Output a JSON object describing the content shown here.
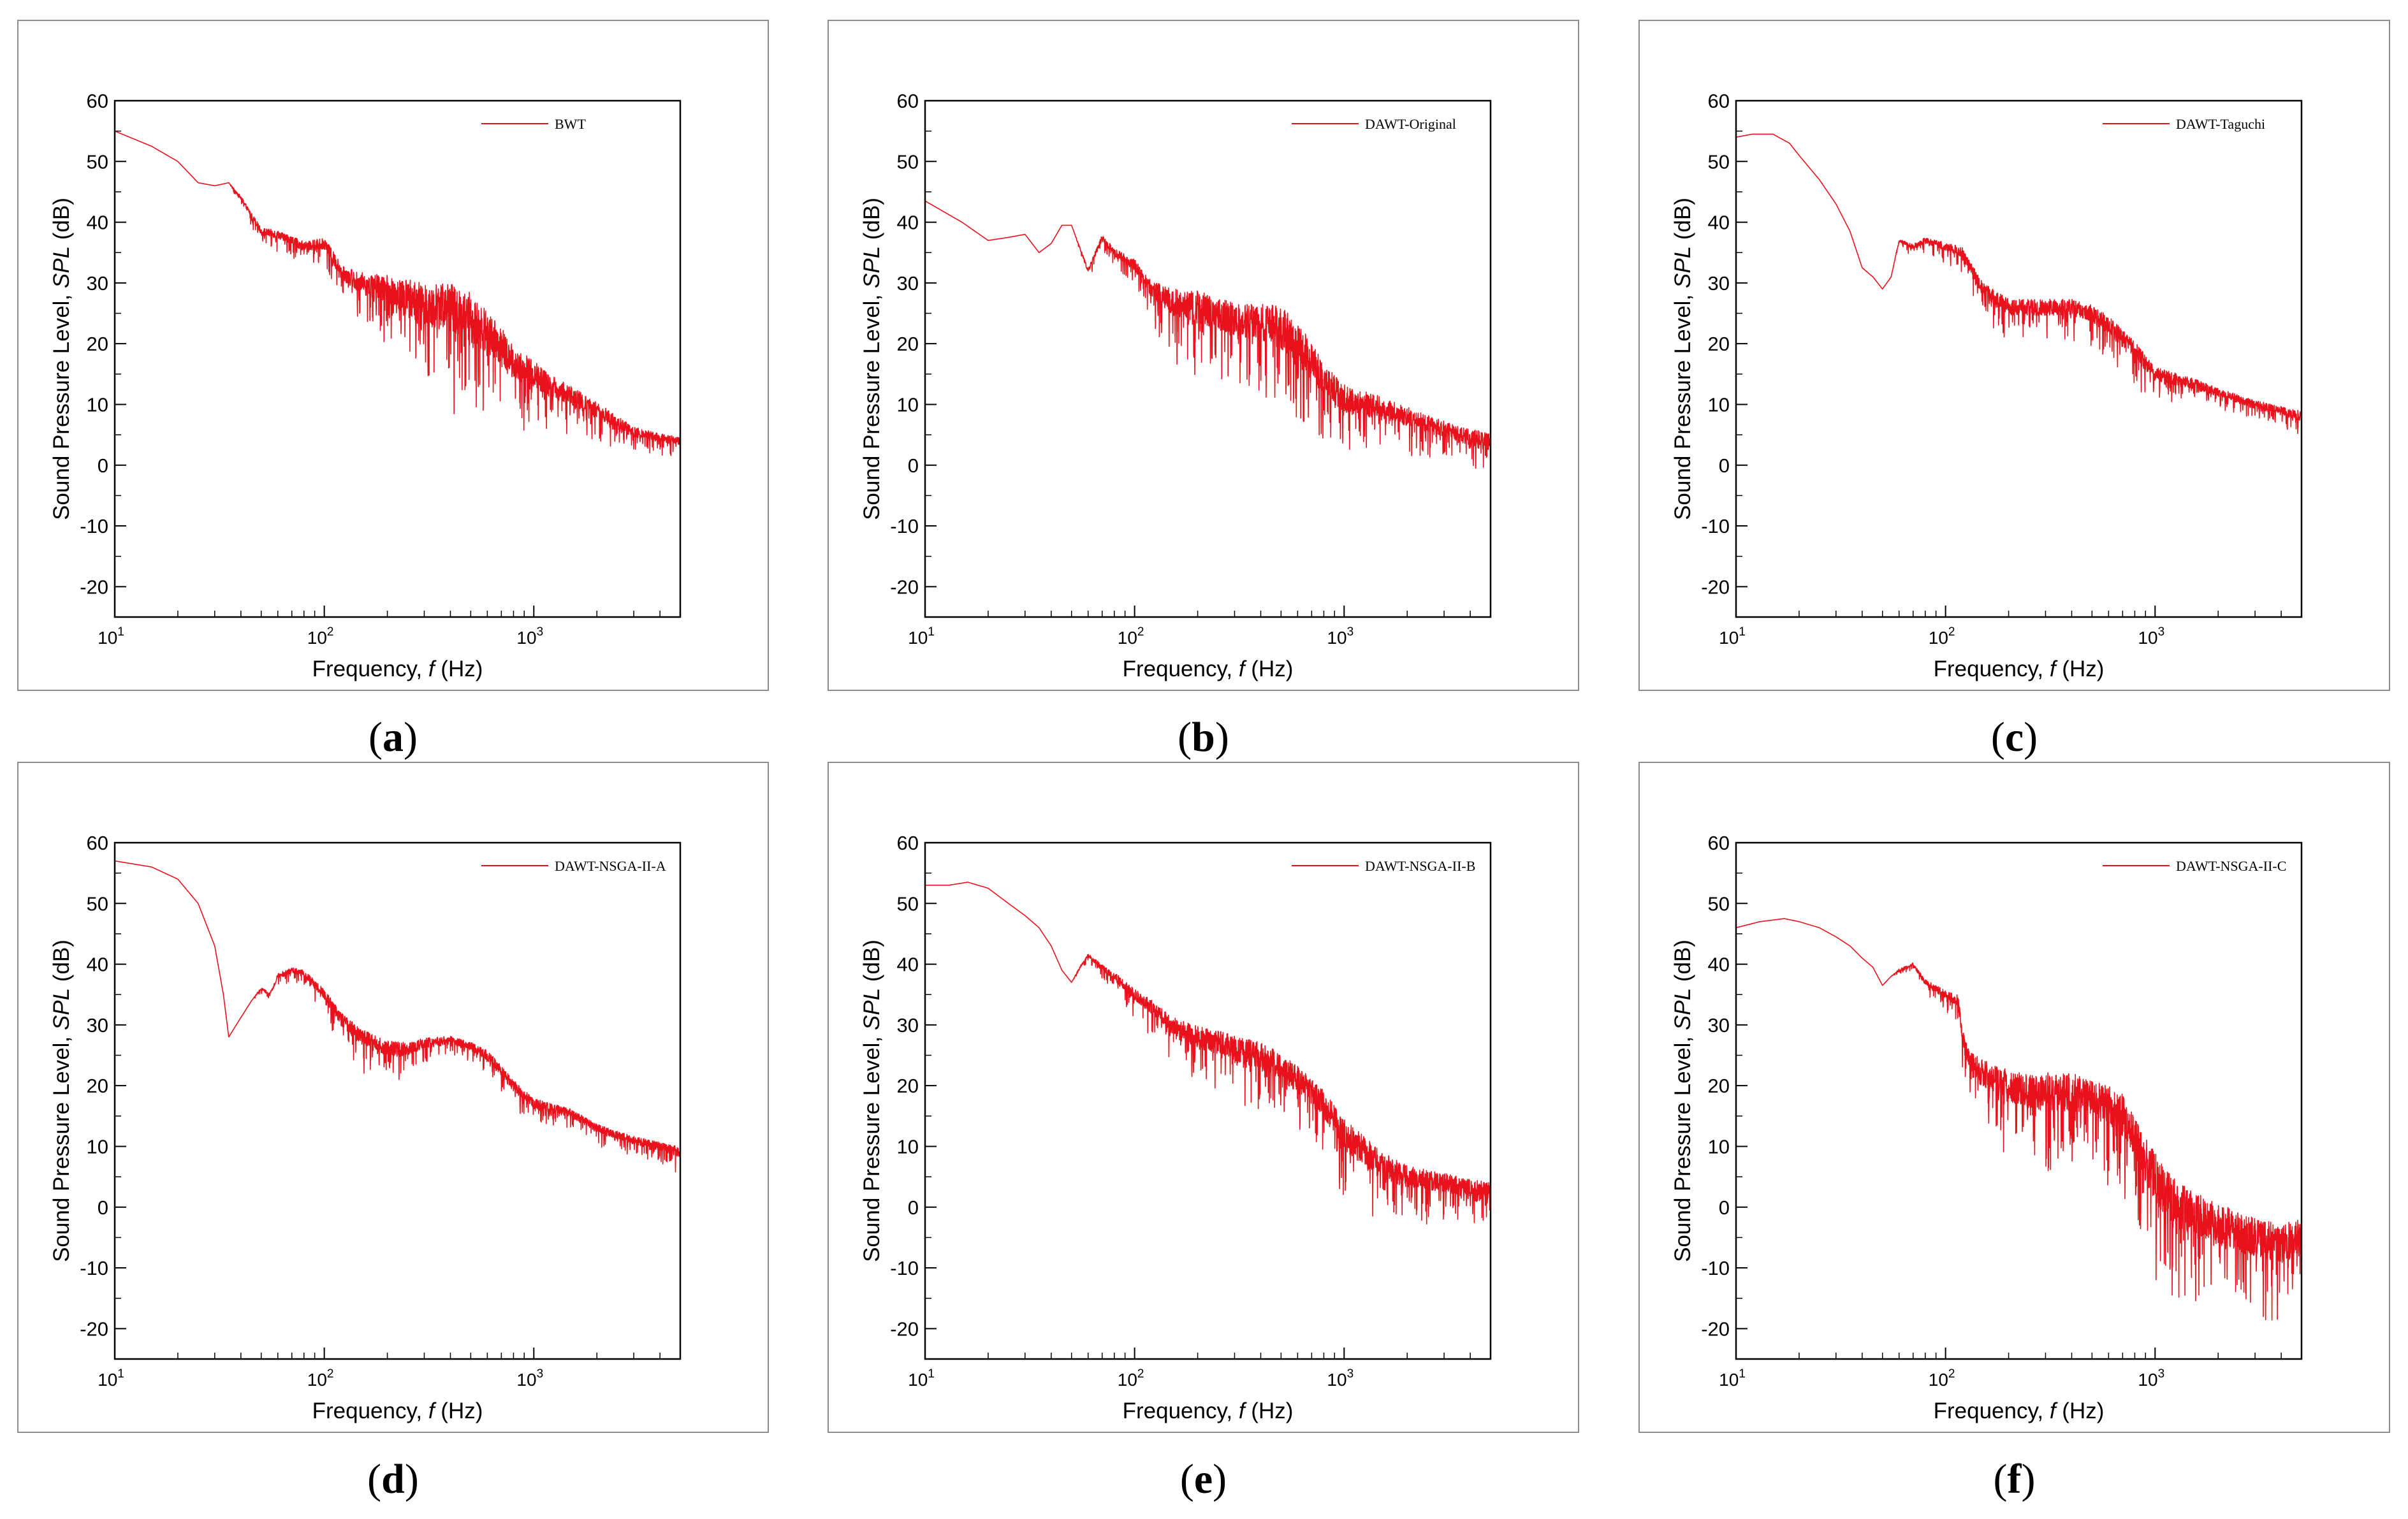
{
  "figure": {
    "panels_note": "Six log-frequency SPL spectra comparing wind turbine configurations"
  },
  "styles": {
    "line_color": "#e8111c",
    "axis_color": "#000000",
    "frame_color": "#8c8c8c"
  },
  "chart_data": [
    {
      "id": "a",
      "type": "line",
      "caption": "a",
      "series_name": "BWT",
      "xlabel": "Frequency, ",
      "xlabel_var": "f",
      "xlabel_unit": " (Hz)",
      "ylabel": "Sound Pressure Level, ",
      "ylabel_var": "SPL",
      "ylabel_unit": " (dB)",
      "xscale": "log",
      "xlim": [
        10,
        5000
      ],
      "ylim": [
        -25,
        60
      ],
      "yticks": [
        -20,
        -10,
        0,
        10,
        20,
        30,
        40,
        50,
        60
      ],
      "xticks": [
        {
          "base": "10",
          "exp": "1"
        },
        {
          "base": "10",
          "exp": "2"
        },
        {
          "base": "10",
          "exp": "3"
        }
      ],
      "legend_loc": "top-right",
      "x": [
        10,
        15,
        20,
        25,
        30,
        35,
        40,
        50,
        60,
        70,
        80,
        100,
        120,
        150,
        200,
        250,
        300,
        400,
        500,
        600,
        700,
        800,
        1000,
        1200,
        1500,
        2000,
        2500,
        3000,
        4000,
        5000
      ],
      "y": [
        55,
        52.5,
        50,
        46.5,
        46,
        46.5,
        44,
        38.5,
        38,
        37,
        36,
        36.5,
        32,
        30,
        29,
        27.5,
        26.5,
        26,
        24.5,
        22,
        19.5,
        17,
        15,
        13,
        11.5,
        9,
        7,
        5.5,
        4.5,
        4
      ],
      "noise": [
        0,
        0,
        0,
        0,
        0,
        0,
        0.8,
        1.2,
        1.5,
        1.5,
        1.8,
        2,
        3,
        4,
        5,
        7,
        8,
        9,
        9,
        8,
        7,
        6,
        5,
        4,
        3.5,
        3,
        2.5,
        2,
        1.5,
        1.5
      ]
    },
    {
      "id": "b",
      "type": "line",
      "caption": "b",
      "series_name": "DAWT-Original",
      "xlabel": "Frequency, ",
      "xlabel_var": "f",
      "xlabel_unit": " (Hz)",
      "ylabel": "Sound Pressure Level, ",
      "ylabel_var": "SPL",
      "ylabel_unit": " (dB)",
      "xscale": "log",
      "xlim": [
        10,
        5000
      ],
      "ylim": [
        -25,
        60
      ],
      "yticks": [
        -20,
        -10,
        0,
        10,
        20,
        30,
        40,
        50,
        60
      ],
      "xticks": [
        {
          "base": "10",
          "exp": "1"
        },
        {
          "base": "10",
          "exp": "2"
        },
        {
          "base": "10",
          "exp": "3"
        }
      ],
      "legend_loc": "top-right",
      "x": [
        10,
        15,
        20,
        25,
        30,
        35,
        40,
        45,
        50,
        60,
        70,
        80,
        100,
        120,
        150,
        200,
        250,
        300,
        400,
        500,
        600,
        700,
        800,
        1000,
        1500,
        2000,
        3000,
        4000,
        5000
      ],
      "y": [
        43.5,
        40,
        37,
        37.5,
        38,
        35,
        36.5,
        39.5,
        39.5,
        32,
        37.5,
        35,
        33,
        29,
        27,
        26,
        25,
        24,
        23.5,
        22.5,
        20,
        17,
        14,
        11,
        9.5,
        8,
        6,
        4.5,
        4
      ],
      "noise": [
        0,
        0,
        0,
        0,
        0,
        0,
        0,
        0,
        0,
        0.8,
        1,
        1.5,
        2,
        3,
        5,
        6,
        6,
        6,
        7,
        8,
        8,
        7,
        6,
        5,
        4,
        3.5,
        3,
        3,
        4
      ]
    },
    {
      "id": "c",
      "type": "line",
      "caption": "c",
      "series_name": "DAWT-Taguchi",
      "xlabel": "Frequency, ",
      "xlabel_var": "f",
      "xlabel_unit": " (Hz)",
      "ylabel": "Sound Pressure Level, ",
      "ylabel_var": "SPL",
      "ylabel_unit": " (dB)",
      "xscale": "log",
      "xlim": [
        10,
        5000
      ],
      "ylim": [
        -25,
        60
      ],
      "yticks": [
        -20,
        -10,
        0,
        10,
        20,
        30,
        40,
        50,
        60
      ],
      "xticks": [
        {
          "base": "10",
          "exp": "1"
        },
        {
          "base": "10",
          "exp": "2"
        },
        {
          "base": "10",
          "exp": "3"
        }
      ],
      "legend_loc": "top-right",
      "x": [
        10,
        12,
        15,
        18,
        20,
        25,
        30,
        35,
        40,
        45,
        50,
        55,
        60,
        70,
        80,
        100,
        120,
        150,
        200,
        250,
        300,
        400,
        500,
        600,
        800,
        1000,
        1500,
        2000,
        3000,
        4000,
        5000
      ],
      "y": [
        54,
        54.5,
        54.5,
        53,
        51,
        47,
        43,
        38.5,
        32.5,
        31,
        29,
        31,
        37,
        36,
        37,
        36,
        35,
        29,
        26,
        26,
        26,
        26,
        25,
        23,
        19,
        15,
        13.5,
        12,
        10,
        9,
        8
      ],
      "noise": [
        0,
        0,
        0,
        0,
        0,
        0,
        0,
        0,
        0,
        0,
        0,
        0,
        0.5,
        1,
        1.2,
        1.5,
        2,
        2.5,
        3,
        3,
        3,
        3,
        3,
        3.5,
        3,
        2.5,
        2,
        1.5,
        1.5,
        1.5,
        2
      ]
    },
    {
      "id": "d",
      "type": "line",
      "caption": "d",
      "series_name": "DAWT-NSGA-II-A",
      "xlabel": "Frequency, ",
      "xlabel_var": "f",
      "xlabel_unit": " (Hz)",
      "ylabel": "Sound Pressure Level, ",
      "ylabel_var": "SPL",
      "ylabel_unit": " (dB)",
      "xscale": "log",
      "xlim": [
        10,
        5000
      ],
      "ylim": [
        -25,
        60
      ],
      "yticks": [
        -20,
        -10,
        0,
        10,
        20,
        30,
        40,
        50,
        60
      ],
      "xticks": [
        {
          "base": "10",
          "exp": "1"
        },
        {
          "base": "10",
          "exp": "2"
        },
        {
          "base": "10",
          "exp": "3"
        }
      ],
      "legend_loc": "top-right",
      "x": [
        10,
        15,
        20,
        25,
        30,
        33,
        35,
        38,
        45,
        50,
        55,
        60,
        70,
        80,
        100,
        120,
        150,
        200,
        250,
        300,
        400,
        500,
        600,
        800,
        1000,
        1500,
        2000,
        3000,
        4000,
        5000
      ],
      "y": [
        57,
        56,
        54,
        50,
        43,
        35,
        28,
        30,
        34,
        36,
        35,
        38,
        39,
        38.5,
        35,
        31,
        28,
        26,
        26,
        27,
        27.5,
        26.5,
        25,
        20,
        17,
        15.5,
        13,
        11,
        10,
        9
      ],
      "noise": [
        0,
        0,
        0,
        0,
        0,
        0,
        0,
        0,
        0,
        0.5,
        0.5,
        1,
        1,
        1.2,
        2,
        2.5,
        3,
        3,
        2.5,
        2,
        1.5,
        1.5,
        2,
        2,
        2,
        1.5,
        1.5,
        1.5,
        1.5,
        2
      ]
    },
    {
      "id": "e",
      "type": "line",
      "caption": "e",
      "series_name": "DAWT-NSGA-II-B",
      "xlabel": "Frequency, ",
      "xlabel_var": "f",
      "xlabel_unit": " (Hz)",
      "ylabel": "Sound Pressure Level, ",
      "ylabel_var": "SPL",
      "ylabel_unit": " (dB)",
      "xscale": "log",
      "xlim": [
        10,
        5000
      ],
      "ylim": [
        -25,
        60
      ],
      "yticks": [
        -20,
        -10,
        0,
        10,
        20,
        30,
        40,
        50,
        60
      ],
      "xticks": [
        {
          "base": "10",
          "exp": "1"
        },
        {
          "base": "10",
          "exp": "2"
        },
        {
          "base": "10",
          "exp": "3"
        }
      ],
      "legend_loc": "top-right",
      "x": [
        10,
        13,
        16,
        20,
        25,
        30,
        35,
        40,
        45,
        50,
        55,
        60,
        70,
        80,
        100,
        120,
        150,
        200,
        250,
        300,
        400,
        500,
        600,
        800,
        1000,
        1500,
        2000,
        3000,
        4000,
        5000
      ],
      "y": [
        53,
        53,
        53.5,
        52.5,
        50,
        48,
        46,
        43,
        39,
        37,
        39.5,
        41.5,
        39.5,
        38,
        35,
        33,
        30,
        28,
        27,
        26,
        25,
        23,
        21,
        17,
        12,
        7,
        5,
        4,
        3,
        2
      ],
      "noise": [
        0,
        0,
        0,
        0,
        0,
        0,
        0,
        0,
        0,
        0,
        0.5,
        0.5,
        1,
        1.5,
        2,
        2.5,
        3,
        4,
        4.5,
        5,
        5,
        5,
        5,
        5,
        6,
        5,
        4,
        3.5,
        3.5,
        5
      ]
    },
    {
      "id": "f",
      "type": "line",
      "caption": "f",
      "series_name": "DAWT-NSGA-II-C",
      "xlabel": "Frequency, ",
      "xlabel_var": "f",
      "xlabel_unit": " (Hz)",
      "ylabel": "Sound Pressure Level, ",
      "ylabel_var": "SPL",
      "ylabel_unit": " (dB)",
      "xscale": "log",
      "xlim": [
        10,
        5000
      ],
      "ylim": [
        -25,
        60
      ],
      "yticks": [
        -20,
        -10,
        0,
        10,
        20,
        30,
        40,
        50,
        60
      ],
      "xticks": [
        {
          "base": "10",
          "exp": "1"
        },
        {
          "base": "10",
          "exp": "2"
        },
        {
          "base": "10",
          "exp": "3"
        }
      ],
      "legend_loc": "top-right",
      "x": [
        10,
        13,
        17,
        20,
        25,
        30,
        35,
        40,
        45,
        50,
        55,
        60,
        70,
        80,
        100,
        115,
        120,
        130,
        150,
        200,
        250,
        300,
        400,
        500,
        600,
        700,
        800,
        1000,
        1200,
        1500,
        2000,
        3000,
        4000,
        5000
      ],
      "y": [
        46,
        47,
        47.5,
        47,
        46,
        44.5,
        43,
        41,
        39.5,
        36.5,
        38,
        39,
        40,
        37,
        35,
        34,
        28,
        24,
        22,
        20,
        19,
        19,
        19,
        18,
        17,
        15,
        11,
        5,
        1,
        -1,
        -3,
        -5,
        -6,
        -5
      ],
      "noise": [
        0,
        0,
        0,
        0,
        0,
        0,
        0,
        0,
        0,
        0,
        0,
        0.5,
        0.5,
        1,
        1.5,
        2,
        3,
        4,
        5,
        6,
        6,
        7,
        7,
        6,
        7,
        8,
        8,
        9,
        9,
        8,
        8,
        7,
        7,
        7
      ]
    }
  ]
}
